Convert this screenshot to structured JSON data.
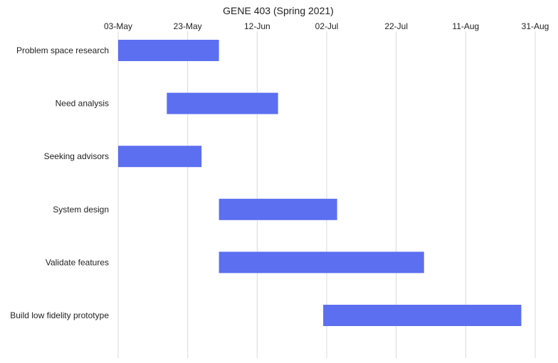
{
  "chart_data": {
    "type": "bar",
    "orientation": "horizontal",
    "title": "GENE 403 (Spring 2021)",
    "xlabel": "",
    "ylabel": "",
    "x_axis_position": "top",
    "grid": true,
    "legend": "none",
    "x_ticks": [
      "03-May",
      "23-May",
      "12-Jun",
      "02-Jul",
      "22-Jul",
      "11-Aug",
      "31-Aug"
    ],
    "xlim": [
      "2021-05-03",
      "2021-08-31"
    ],
    "bar_color": "#5b6ff0",
    "tasks": [
      {
        "name": "Problem space research",
        "start": "2021-05-03",
        "end": "2021-06-01"
      },
      {
        "name": "Need analysis",
        "start": "2021-05-17",
        "end": "2021-06-18"
      },
      {
        "name": "Seeking advisors",
        "start": "2021-05-03",
        "end": "2021-05-27"
      },
      {
        "name": "System design",
        "start": "2021-06-01",
        "end": "2021-07-05"
      },
      {
        "name": "Validate features",
        "start": "2021-06-01",
        "end": "2021-07-30"
      },
      {
        "name": "Build low fidelity prototype",
        "start": "2021-07-01",
        "end": "2021-08-27"
      }
    ]
  }
}
